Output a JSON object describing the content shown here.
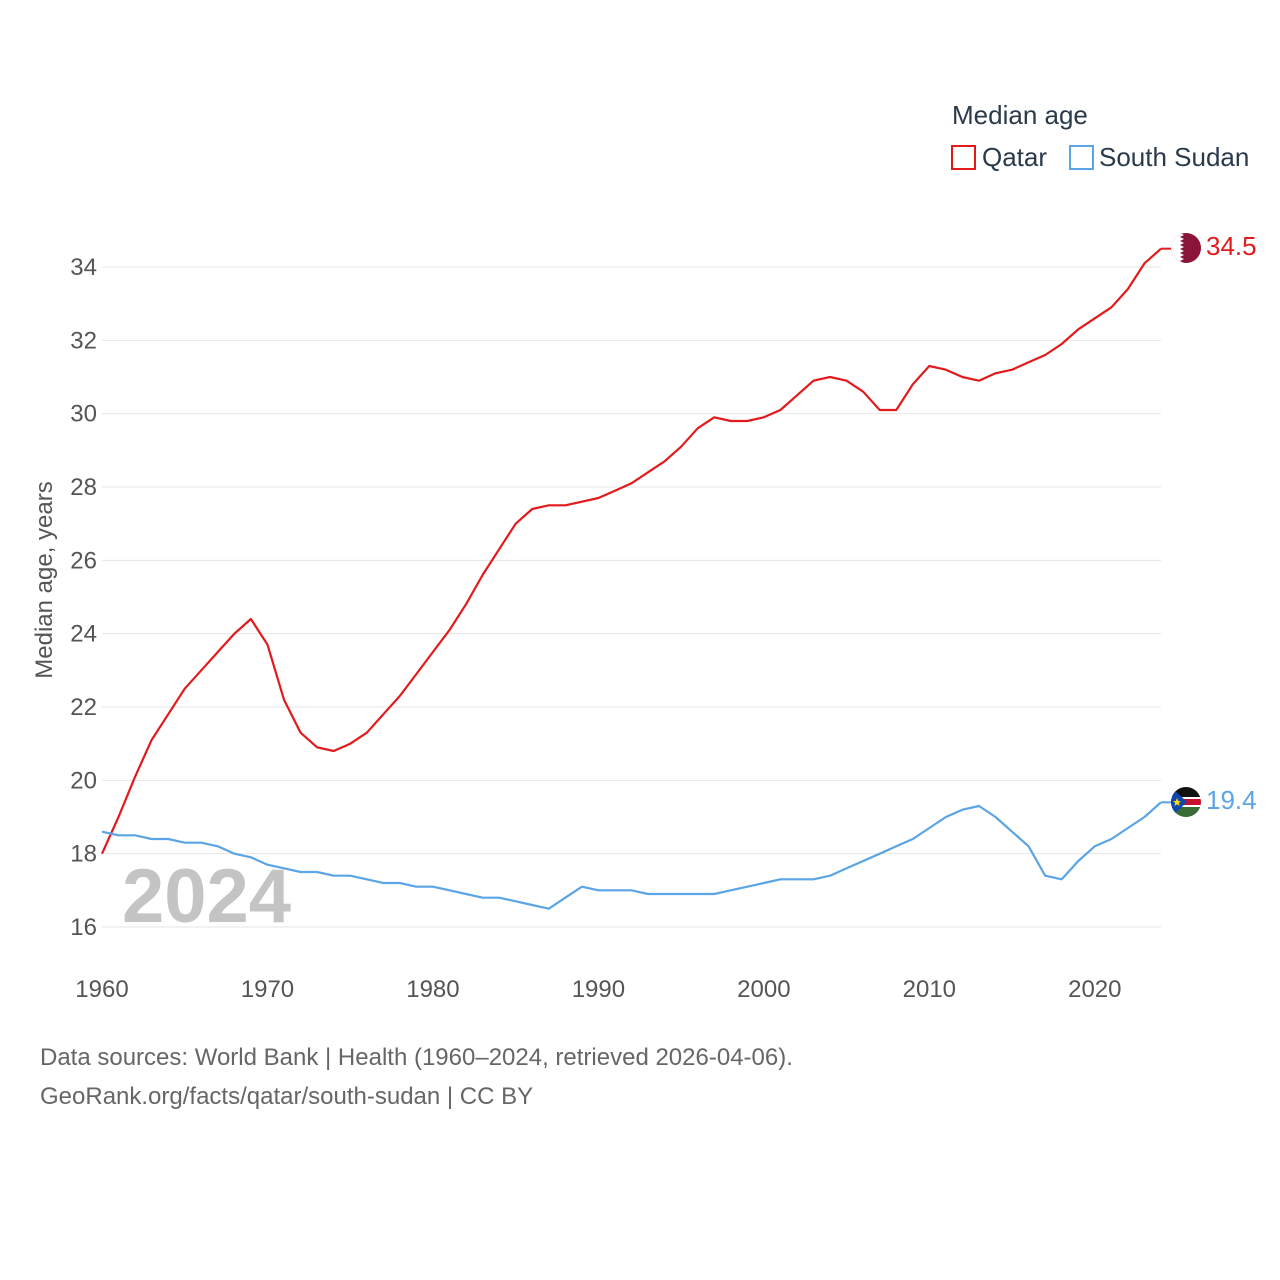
{
  "colors": {
    "qatar": "#e31a1c",
    "south_sudan": "#5ba4e5",
    "grid": "#e6e6e6"
  },
  "legend": {
    "title": "Median age",
    "items": [
      {
        "label": "Qatar",
        "color": "#e31a1c"
      },
      {
        "label": "South Sudan",
        "color": "#5ba4e5"
      }
    ]
  },
  "watermark_year": "2024",
  "footer": {
    "line1": "Data sources: World Bank | Health (1960–2024, retrieved 2026-04-06).",
    "line2": "GeoRank.org/facts/qatar/south-sudan | CC BY"
  },
  "chart_data": {
    "type": "line",
    "title": "",
    "xlabel": "",
    "ylabel": "Median age, years",
    "xlim": [
      1960,
      2024
    ],
    "ylim": [
      16,
      35.5
    ],
    "x_ticks": [
      1960,
      1970,
      1980,
      1990,
      2000,
      2010,
      2020
    ],
    "y_ticks": [
      16,
      18,
      20,
      22,
      24,
      26,
      28,
      30,
      32,
      34
    ],
    "x": [
      1960,
      1961,
      1962,
      1963,
      1964,
      1965,
      1966,
      1967,
      1968,
      1969,
      1970,
      1971,
      1972,
      1973,
      1974,
      1975,
      1976,
      1977,
      1978,
      1979,
      1980,
      1981,
      1982,
      1983,
      1984,
      1985,
      1986,
      1987,
      1988,
      1989,
      1990,
      1991,
      1992,
      1993,
      1994,
      1995,
      1996,
      1997,
      1998,
      1999,
      2000,
      2001,
      2002,
      2003,
      2004,
      2005,
      2006,
      2007,
      2008,
      2009,
      2010,
      2011,
      2012,
      2013,
      2014,
      2015,
      2016,
      2017,
      2018,
      2019,
      2020,
      2021,
      2022,
      2023,
      2024
    ],
    "series": [
      {
        "name": "Qatar",
        "color": "#e31a1c",
        "end_label": "34.5",
        "values": [
          18.0,
          19.0,
          20.1,
          21.1,
          21.8,
          22.5,
          23.0,
          23.5,
          24.0,
          24.4,
          23.7,
          22.2,
          21.3,
          20.9,
          20.8,
          21.0,
          21.3,
          21.8,
          22.3,
          22.9,
          23.5,
          24.1,
          24.8,
          25.6,
          26.3,
          27.0,
          27.4,
          27.5,
          27.5,
          27.6,
          27.7,
          27.9,
          28.1,
          28.4,
          28.7,
          29.1,
          29.6,
          29.9,
          29.8,
          29.8,
          29.9,
          30.1,
          30.5,
          30.9,
          31.0,
          30.9,
          30.6,
          30.1,
          30.1,
          30.8,
          31.3,
          31.2,
          31.0,
          30.9,
          31.1,
          31.2,
          31.4,
          31.6,
          31.9,
          32.3,
          32.6,
          32.9,
          33.4,
          34.1,
          34.5
        ]
      },
      {
        "name": "South Sudan",
        "color": "#5ba4e5",
        "end_label": "19.4",
        "values": [
          18.6,
          18.5,
          18.5,
          18.4,
          18.4,
          18.3,
          18.3,
          18.2,
          18.0,
          17.9,
          17.7,
          17.6,
          17.5,
          17.5,
          17.4,
          17.4,
          17.3,
          17.2,
          17.2,
          17.1,
          17.1,
          17.0,
          16.9,
          16.8,
          16.8,
          16.7,
          16.6,
          16.5,
          16.8,
          17.1,
          17.0,
          17.0,
          17.0,
          16.9,
          16.9,
          16.9,
          16.9,
          16.9,
          17.0,
          17.1,
          17.2,
          17.3,
          17.3,
          17.3,
          17.4,
          17.6,
          17.8,
          18.0,
          18.2,
          18.4,
          18.7,
          19.0,
          19.2,
          19.3,
          19.0,
          18.6,
          18.2,
          17.4,
          17.3,
          17.8,
          18.2,
          18.4,
          18.7,
          19.0,
          19.4
        ]
      }
    ]
  }
}
